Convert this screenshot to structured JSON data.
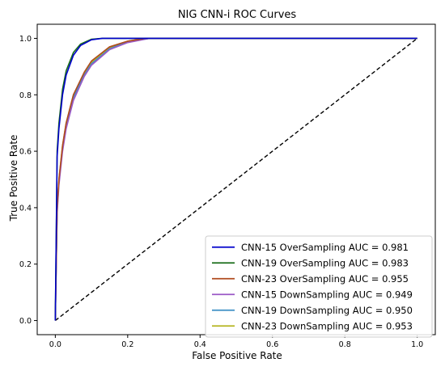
{
  "chart_data": {
    "type": "line",
    "title": "NIG CNN-i ROC Curves",
    "xlabel": "False Positive Rate",
    "ylabel": "True Positive Rate",
    "xlim": [
      -0.05,
      1.05
    ],
    "ylim": [
      -0.05,
      1.05
    ],
    "xticks": [
      "0.0",
      "0.2",
      "0.4",
      "0.6",
      "0.8",
      "1.0"
    ],
    "yticks": [
      "0.0",
      "0.2",
      "0.4",
      "0.6",
      "0.8",
      "1.0"
    ],
    "legend_position": "lower right",
    "grid": false,
    "series": [
      {
        "name": "CNN-15 OverSampling AUC = 0.981",
        "color": "#0000cc",
        "x": [
          0,
          0.005,
          0.01,
          0.02,
          0.03,
          0.05,
          0.07,
          0.1,
          0.13,
          0.2,
          1.0
        ],
        "y": [
          0,
          0.58,
          0.68,
          0.8,
          0.87,
          0.94,
          0.975,
          0.995,
          1.0,
          1.0,
          1.0
        ]
      },
      {
        "name": "CNN-19 OverSampling AUC = 0.983",
        "color": "#1a6e1a",
        "x": [
          0,
          0.005,
          0.01,
          0.02,
          0.03,
          0.05,
          0.07,
          0.1,
          0.13,
          0.2,
          1.0
        ],
        "y": [
          0,
          0.6,
          0.7,
          0.82,
          0.885,
          0.95,
          0.98,
          0.997,
          1.0,
          1.0,
          1.0
        ]
      },
      {
        "name": "CNN-23 OverSampling AUC = 0.955",
        "color": "#b04a1e",
        "x": [
          0,
          0.005,
          0.01,
          0.02,
          0.03,
          0.05,
          0.08,
          0.1,
          0.15,
          0.2,
          0.25,
          1.0
        ],
        "y": [
          0,
          0.4,
          0.5,
          0.62,
          0.7,
          0.8,
          0.88,
          0.92,
          0.97,
          0.99,
          1.0,
          1.0
        ]
      },
      {
        "name": "CNN-15 DownSampling AUC = 0.949",
        "color": "#9b59c6",
        "x": [
          0,
          0.005,
          0.01,
          0.02,
          0.03,
          0.05,
          0.08,
          0.1,
          0.15,
          0.2,
          0.26,
          1.0
        ],
        "y": [
          0,
          0.38,
          0.48,
          0.6,
          0.68,
          0.78,
          0.865,
          0.905,
          0.96,
          0.985,
          1.0,
          1.0
        ]
      },
      {
        "name": "CNN-19 DownSampling AUC = 0.950",
        "color": "#3c8fc4",
        "x": [
          0,
          0.005,
          0.01,
          0.02,
          0.03,
          0.05,
          0.08,
          0.1,
          0.15,
          0.2,
          0.26,
          1.0
        ],
        "y": [
          0,
          0.39,
          0.49,
          0.61,
          0.69,
          0.79,
          0.87,
          0.91,
          0.963,
          0.987,
          1.0,
          1.0
        ]
      },
      {
        "name": "CNN-23 DownSampling AUC = 0.953",
        "color": "#b5b521",
        "x": [
          0,
          0.005,
          0.01,
          0.02,
          0.03,
          0.05,
          0.08,
          0.1,
          0.15,
          0.2,
          0.25,
          1.0
        ],
        "y": [
          0,
          0.4,
          0.5,
          0.62,
          0.7,
          0.8,
          0.875,
          0.915,
          0.967,
          0.99,
          1.0,
          1.0
        ]
      }
    ],
    "reference_line": {
      "x": [
        0,
        1
      ],
      "y": [
        0,
        1
      ],
      "style": "dashed",
      "color": "#000000"
    }
  }
}
